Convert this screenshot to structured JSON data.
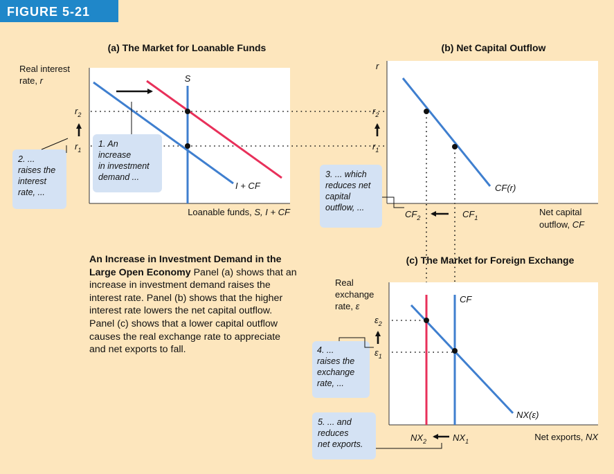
{
  "figure_label": "FIGURE 5-21",
  "colors": {
    "panel_bg": "#ffffff",
    "page_bg": "#fde6bd",
    "blue_line": "#3f7fcf",
    "red_line": "#e8305a",
    "note_box": "#d4e2f4",
    "header_bg": "#1f87c9"
  },
  "panel_a": {
    "title": "(a) The Market for Loanable Funds",
    "y_label_line1": "Real interest",
    "y_label_line2": "rate, ",
    "y_label_var": "r",
    "x_label": "Loanable funds, ",
    "x_label_vars": "S, I + CF",
    "curve_s": "S",
    "curve_demand": "I + CF",
    "tick_r2": "r",
    "tick_r2_sub": "2",
    "tick_r1": "r",
    "tick_r1_sub": "1",
    "note_1": [
      "1. An",
      "increase",
      "in investment",
      "demand ..."
    ],
    "note_2": [
      "2. ...",
      "raises the",
      "interest",
      "rate, ..."
    ]
  },
  "panel_b": {
    "title": "(b) Net Capital Outflow",
    "y_label": "r",
    "tick_r2": "r",
    "tick_r2_sub": "2",
    "tick_r1": "r",
    "tick_r1_sub": "1",
    "curve": "CF(r)",
    "x_label_line1": "Net capital",
    "x_label_line2": "outflow, ",
    "x_label_var": "CF",
    "tick_cf2": "CF",
    "tick_cf2_sub": "2",
    "tick_cf1": "CF",
    "tick_cf1_sub": "1",
    "note_3": [
      "3. ... which",
      "reduces net",
      "capital",
      "outflow, ..."
    ]
  },
  "panel_c": {
    "title": "(c) The Market for Foreign Exchange",
    "y_label_line1": "Real",
    "y_label_line2": "exchange",
    "y_label_line3": "rate, ",
    "y_label_var": "ε",
    "curve_cf": "CF",
    "curve_nx": "NX(ε)",
    "tick_e2": "ε",
    "tick_e2_sub": "2",
    "tick_e1": "ε",
    "tick_e1_sub": "1",
    "x_label": "Net exports, ",
    "x_label_var": "NX",
    "tick_nx2": "NX",
    "tick_nx2_sub": "2",
    "tick_nx1": "NX",
    "tick_nx1_sub": "1",
    "note_4": [
      "4. ...",
      "raises the",
      "exchange",
      "rate, ..."
    ],
    "note_5": [
      "5. ... and",
      "reduces",
      "net exports."
    ]
  },
  "caption": {
    "bold": "An Increase in Investment Demand in the Large Open Economy",
    "text": "Panel (a) shows that an increase in investment demand raises the interest rate. Panel (b) shows that the higher interest rate lowers the net capital outflow. Panel (c) shows that a lower capital outflow causes the real exchange rate to appreciate and net exports to fall."
  }
}
